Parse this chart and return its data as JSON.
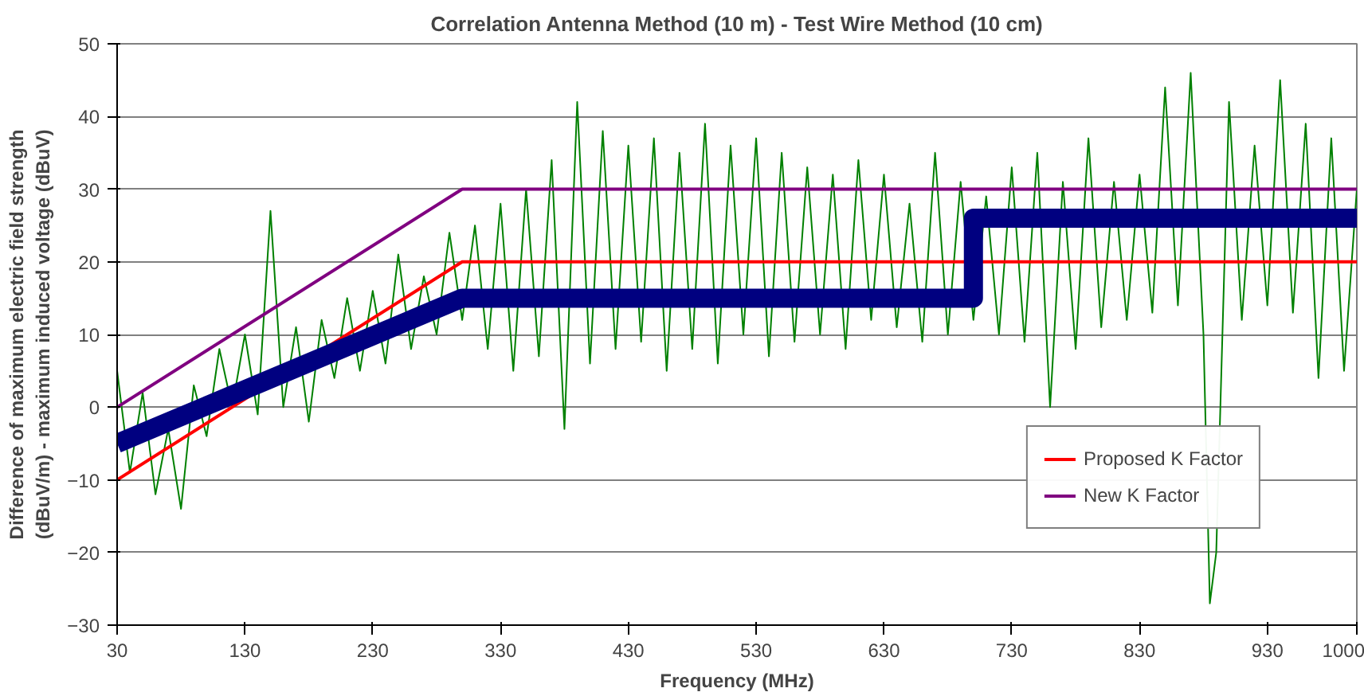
{
  "chart_data": {
    "type": "line",
    "title": "Correlation Antenna Method (10 m) - Test Wire Method (10 cm)",
    "xlabel": "Frequency (MHz)",
    "ylabel": "Difference of maximum electric field strength\n(dBuV/m) - maximum induced voltage (dBuV)",
    "xlim": [
      30,
      1000
    ],
    "xticks": [
      30,
      130,
      230,
      330,
      430,
      530,
      630,
      730,
      830,
      930,
      1000
    ],
    "ylim": [
      -30,
      50
    ],
    "yticks": [
      -30,
      -20,
      -10,
      0,
      10,
      20,
      30,
      40,
      50
    ],
    "grid": "y",
    "legend": "bottom right",
    "line_style": "solid",
    "marker": "none",
    "series": [
      {
        "color": "#008000",
        "x": [
          30,
          40,
          50,
          60,
          70,
          80,
          90,
          100,
          110,
          120,
          130,
          140,
          150,
          160,
          170,
          180,
          190,
          200,
          210,
          220,
          230,
          240,
          250,
          260,
          270,
          280,
          290,
          300,
          310,
          320,
          330,
          340,
          350,
          360,
          370,
          380,
          390,
          400,
          410,
          420,
          430,
          440,
          450,
          460,
          470,
          480,
          490,
          500,
          510,
          520,
          530,
          540,
          550,
          560,
          570,
          580,
          590,
          600,
          610,
          620,
          630,
          640,
          650,
          660,
          670,
          680,
          690,
          700,
          710,
          720,
          730,
          740,
          750,
          760,
          770,
          780,
          790,
          800,
          810,
          820,
          830,
          840,
          850,
          860,
          870,
          880,
          885,
          890,
          900,
          910,
          920,
          930,
          940,
          950,
          960,
          970,
          980,
          990,
          1000
        ],
        "values": [
          5,
          -9,
          2,
          -12,
          -3,
          -14,
          3,
          -4,
          8,
          0,
          10,
          -1,
          27,
          0,
          11,
          -2,
          12,
          4,
          15,
          5,
          16,
          6,
          21,
          8,
          18,
          10,
          24,
          12,
          25,
          8,
          28,
          5,
          30,
          7,
          34,
          -3,
          42,
          6,
          38,
          8,
          36,
          9,
          37,
          5,
          35,
          8,
          39,
          6,
          36,
          10,
          37,
          7,
          35,
          9,
          33,
          10,
          32,
          8,
          34,
          12,
          32,
          11,
          28,
          9,
          35,
          10,
          31,
          12,
          29,
          10,
          33,
          9,
          35,
          0,
          31,
          8,
          37,
          11,
          31,
          12,
          32,
          13,
          44,
          14,
          46,
          10,
          -27,
          -20,
          42,
          12,
          36,
          14,
          45,
          13,
          39,
          4,
          37,
          5,
          30
        ]
      },
      {
        "name": "Proposed K Factor",
        "color": "#ff0000",
        "x": [
          30,
          300,
          1000
        ],
        "values": [
          -10,
          20,
          20
        ]
      },
      {
        "name": "New K Factor",
        "color": "#800080",
        "x": [
          30,
          300,
          1000
        ],
        "values": [
          0,
          30,
          30
        ]
      },
      {
        "color": "#000080",
        "x": [
          30,
          300,
          700,
          700,
          1000
        ],
        "values": [
          -5,
          15,
          15,
          26,
          26
        ]
      }
    ]
  }
}
